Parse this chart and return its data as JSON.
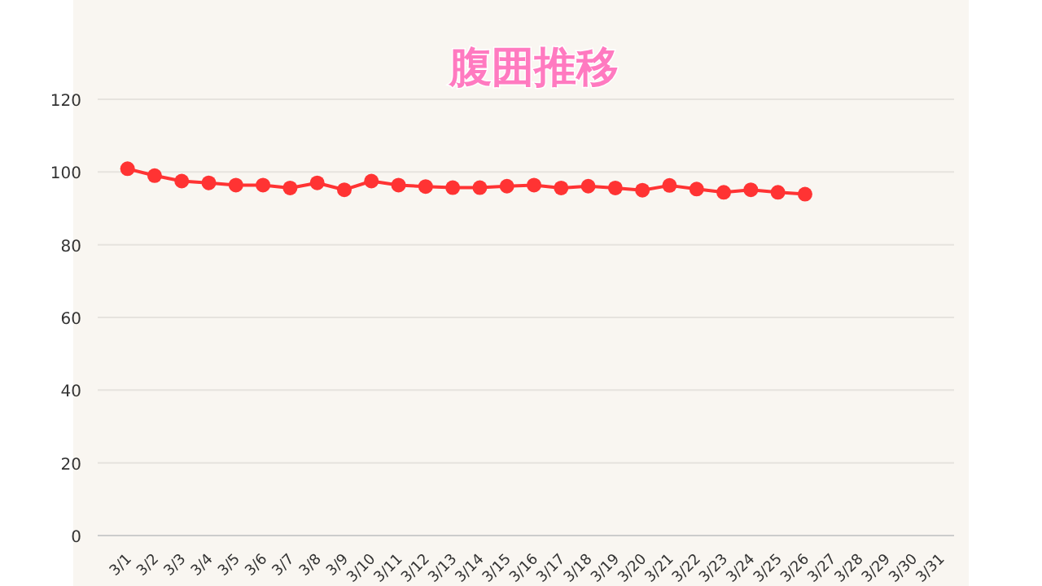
{
  "chart_data": {
    "type": "line",
    "title": "腹囲推移",
    "categories": [
      "3/1",
      "3/2",
      "3/3",
      "3/4",
      "3/5",
      "3/6",
      "3/7",
      "3/8",
      "3/9",
      "3/10",
      "3/11",
      "3/12",
      "3/13",
      "3/14",
      "3/15",
      "3/16",
      "3/17",
      "3/18",
      "3/19",
      "3/20",
      "3/21",
      "3/22",
      "3/23",
      "3/24",
      "3/25",
      "3/26",
      "3/27",
      "3/28",
      "3/29",
      "3/30",
      "3/31"
    ],
    "series": [
      {
        "color": "#ff3333",
        "values": [
          100.9,
          99.0,
          97.5,
          97.0,
          96.4,
          96.4,
          95.6,
          97.0,
          95.1,
          97.5,
          96.4,
          96.0,
          95.7,
          95.7,
          96.1,
          96.4,
          95.6,
          96.1,
          95.6,
          95.0,
          96.3,
          95.3,
          94.4,
          95.1,
          94.4,
          93.9,
          null,
          null,
          null,
          null,
          null
        ]
      }
    ],
    "ylim": [
      0,
      120
    ],
    "yticks": [
      0,
      20,
      40,
      60,
      80,
      100,
      120
    ],
    "grid": "y",
    "marker": "circle",
    "line_style": "solid"
  }
}
